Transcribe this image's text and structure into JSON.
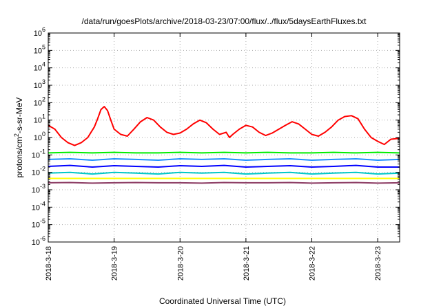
{
  "chart_data": {
    "type": "line",
    "title": "/data/run/goesPlots/archive/2018-03-23/07:00/flux/../flux/5daysEarthFluxes.txt",
    "xlabel": "Coordinated Universal Time (UTC)",
    "ylabel": "protons/cm2-s-sr-MeV",
    "ylabel_main": "protons/cm",
    "ylabel_sup": "2",
    "ylabel_rest": "-s-sr-MeV",
    "yscale": "log",
    "ylim": [
      1e-06,
      1000000.0
    ],
    "xlim": [
      "2018-03-18",
      "2018-03-23 08:00"
    ],
    "grid": true,
    "x_ticks": [
      "2018-3-18",
      "2018-3-19",
      "2018-3-20",
      "2018-3-21",
      "2018-3-22",
      "2018-3-23"
    ],
    "y_ticks": [
      {
        "base": "10",
        "exp": "-6"
      },
      {
        "base": "10",
        "exp": "-5"
      },
      {
        "base": "10",
        "exp": "-4"
      },
      {
        "base": "10",
        "exp": "-3"
      },
      {
        "base": "10",
        "exp": "-2"
      },
      {
        "base": "10",
        "exp": "-1"
      },
      {
        "base": "10",
        "exp": "0"
      },
      {
        "base": "10",
        "exp": "1"
      },
      {
        "base": "10",
        "exp": "2"
      },
      {
        "base": "10",
        "exp": "3"
      },
      {
        "base": "10",
        "exp": "4"
      },
      {
        "base": "10",
        "exp": "5"
      },
      {
        "base": "10",
        "exp": "6"
      }
    ],
    "series": [
      {
        "color": "#ff0000",
        "x_days": [
          0,
          0.1,
          0.2,
          0.3,
          0.4,
          0.5,
          0.6,
          0.7,
          0.75,
          0.8,
          0.85,
          0.9,
          0.95,
          1.0,
          1.1,
          1.2,
          1.3,
          1.4,
          1.5,
          1.6,
          1.7,
          1.8,
          1.9,
          2.0,
          2.1,
          2.2,
          2.3,
          2.4,
          2.5,
          2.6,
          2.7,
          2.75,
          2.8,
          2.9,
          3.0,
          3.1,
          3.2,
          3.3,
          3.4,
          3.5,
          3.6,
          3.7,
          3.8,
          3.9,
          4.0,
          4.1,
          4.2,
          4.3,
          4.4,
          4.5,
          4.6,
          4.7,
          4.8,
          4.9,
          5.0,
          5.1,
          5.2,
          5.33
        ],
        "values": [
          5,
          3,
          1,
          0.5,
          0.35,
          0.5,
          1,
          4,
          12,
          40,
          60,
          35,
          10,
          3,
          1.5,
          1.2,
          3,
          8,
          14,
          10,
          4,
          2,
          1.5,
          1.8,
          3,
          6,
          10,
          7,
          3,
          1.5,
          2,
          1,
          1.5,
          3,
          5,
          4,
          2,
          1.3,
          1.8,
          3,
          5,
          8,
          6,
          3,
          1.5,
          1.2,
          2,
          4,
          10,
          16,
          18,
          12,
          3,
          1,
          0.6,
          0.4,
          0.8,
          0.9
        ]
      },
      {
        "color": "#00ee00",
        "x_days": [
          0,
          0.33,
          0.67,
          1.0,
          1.33,
          1.67,
          2.0,
          2.33,
          2.67,
          3.0,
          3.33,
          3.67,
          4.0,
          4.33,
          4.67,
          5.0,
          5.33
        ],
        "values": [
          0.13,
          0.14,
          0.13,
          0.14,
          0.13,
          0.13,
          0.14,
          0.13,
          0.14,
          0.13,
          0.14,
          0.13,
          0.13,
          0.14,
          0.13,
          0.14,
          0.13
        ]
      },
      {
        "color": "#1e90ff",
        "x_days": [
          0,
          0.33,
          0.67,
          1.0,
          1.33,
          1.67,
          2.0,
          2.33,
          2.67,
          3.0,
          3.33,
          3.67,
          4.0,
          4.33,
          4.67,
          5.0,
          5.33
        ],
        "values": [
          0.055,
          0.06,
          0.05,
          0.06,
          0.055,
          0.05,
          0.06,
          0.055,
          0.06,
          0.05,
          0.055,
          0.06,
          0.05,
          0.055,
          0.06,
          0.05,
          0.055
        ]
      },
      {
        "color": "#0000ff",
        "x_days": [
          0,
          0.33,
          0.67,
          1.0,
          1.33,
          1.67,
          2.0,
          2.33,
          2.67,
          3.0,
          3.33,
          3.67,
          4.0,
          4.33,
          4.67,
          5.0,
          5.33
        ],
        "values": [
          0.022,
          0.025,
          0.02,
          0.024,
          0.022,
          0.02,
          0.024,
          0.022,
          0.025,
          0.02,
          0.022,
          0.024,
          0.02,
          0.022,
          0.025,
          0.02,
          0.02
        ]
      },
      {
        "color": "#00c8c8",
        "x_days": [
          0,
          0.33,
          0.67,
          1.0,
          1.33,
          1.67,
          2.0,
          2.33,
          2.67,
          3.0,
          3.33,
          3.67,
          4.0,
          4.33,
          4.67,
          5.0,
          5.33
        ],
        "values": [
          0.009,
          0.01,
          0.008,
          0.01,
          0.009,
          0.008,
          0.01,
          0.009,
          0.01,
          0.008,
          0.009,
          0.01,
          0.008,
          0.009,
          0.01,
          0.008,
          0.009
        ]
      },
      {
        "color": "#ffff00",
        "x_days": [
          0,
          0.33,
          0.67,
          1.0,
          1.33,
          1.67,
          2.0,
          2.33,
          2.67,
          3.0,
          3.33,
          3.67,
          4.0,
          4.33,
          4.67,
          5.0,
          5.33
        ],
        "values": [
          0.0045,
          0.0045,
          0.0045,
          0.0045,
          0.0045,
          0.0045,
          0.0045,
          0.0045,
          0.0045,
          0.0045,
          0.0045,
          0.0045,
          0.0045,
          0.0045,
          0.0045,
          0.0045,
          0.0045
        ]
      },
      {
        "color": "#8b3a62",
        "x_days": [
          0,
          0.33,
          0.67,
          1.0,
          1.33,
          1.67,
          2.0,
          2.33,
          2.67,
          3.0,
          3.33,
          3.67,
          4.0,
          4.33,
          4.67,
          5.0,
          5.33
        ],
        "values": [
          0.0025,
          0.0026,
          0.0024,
          0.0025,
          0.0026,
          0.0025,
          0.0025,
          0.0024,
          0.0026,
          0.0025,
          0.0025,
          0.0026,
          0.0024,
          0.0025,
          0.0026,
          0.0024,
          0.0025
        ]
      }
    ]
  }
}
